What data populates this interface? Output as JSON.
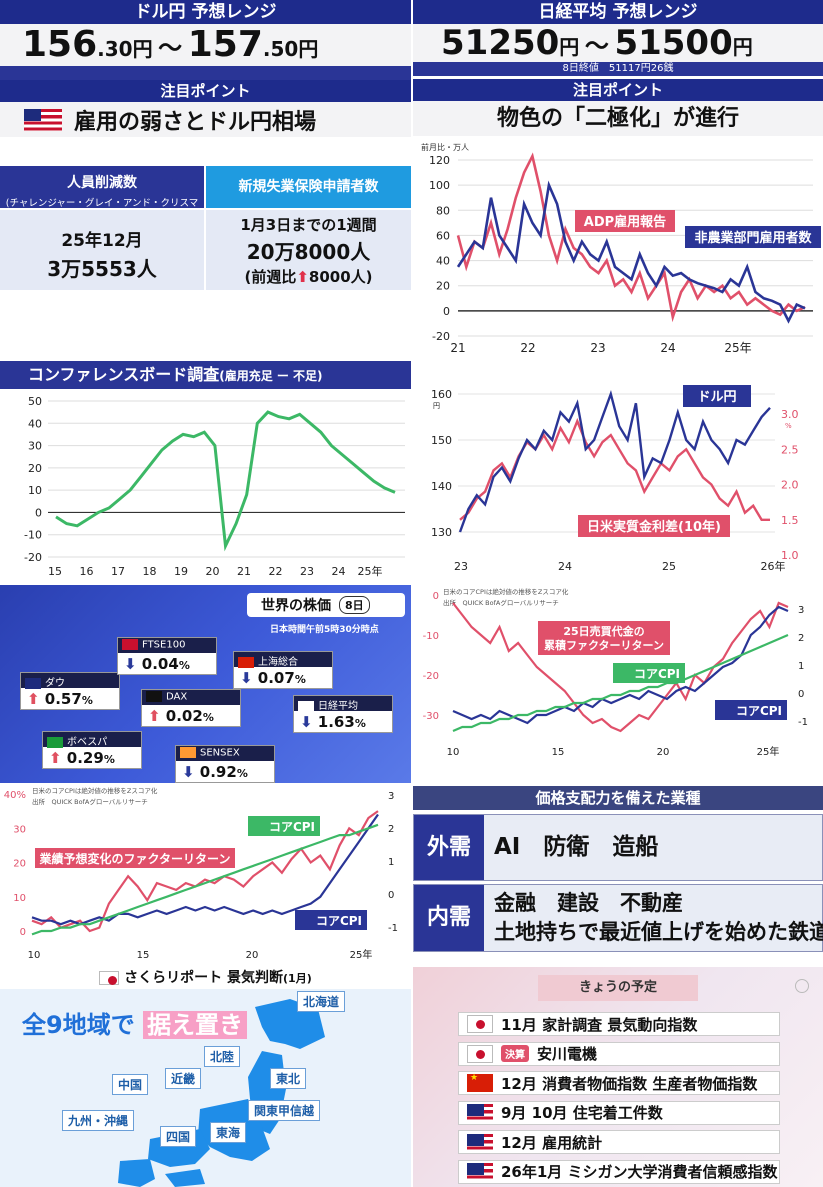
{
  "usdjpy": {
    "header": "ドル円 予想レンジ",
    "low_big": "156",
    "low_small": ".30円",
    "sep": "～",
    "high_big": "157",
    "high_small": ".50円"
  },
  "nikkei": {
    "header": "日経平均 予想レンジ",
    "low": "51250",
    "low_unit": "円",
    "sep": "～",
    "high": "51500",
    "high_unit": "円",
    "sub": "8日終値　51117円26銭"
  },
  "focus_left": {
    "header": "注目ポイント",
    "title": "雇用の弱さとドル円相場"
  },
  "focus_right": {
    "header": "注目ポイント",
    "title": "物色の「二極化」が進行"
  },
  "table": {
    "col1_head_1": "人員削減数",
    "col1_head_2": "(チャレンジャー・グレイ・アンド・クリスマス)",
    "col2_head": "新規失業保険申請者数",
    "col1_v1": "25年12月",
    "col1_v2": "3万5553人",
    "col2_v1": "1月3日までの1週間",
    "col2_v2": "20万8000人",
    "col2_v3a": "(前週比",
    "col2_v3b": "8000人)"
  },
  "chart_adp_title_unit": "前月比・万人",
  "chart_conf_title": "コンファレンスボード調査",
  "chart_conf_sub": "(雇用充足 ー 不足)",
  "chart_usd_unit": "円",
  "chart_usd_unit2": "%",
  "world": {
    "title": "世界の株価",
    "badge": "8日",
    "time": "日本時間午前5時30分時点",
    "items": [
      {
        "name": "ダウ",
        "value": "0.57",
        "dir": "up",
        "flag": "us"
      },
      {
        "name": "FTSE100",
        "value": "0.04",
        "dir": "down",
        "flag": "uk"
      },
      {
        "name": "DAX",
        "value": "0.02",
        "dir": "up",
        "flag": "de"
      },
      {
        "name": "上海総合",
        "value": "0.07",
        "dir": "down",
        "flag": "cn"
      },
      {
        "name": "日経平均",
        "value": "1.63",
        "dir": "down",
        "flag": "jp"
      },
      {
        "name": "ボベスパ",
        "value": "0.29",
        "dir": "up",
        "flag": "br"
      },
      {
        "name": "SENSEX",
        "value": "0.92",
        "dir": "down",
        "flag": "in"
      }
    ],
    "pct": "%"
  },
  "chart_factor_note": "日米のコアCPIは絶対値の推移をZスコア化",
  "chart_factor_src": "出所　QUICK BofAグローバルリサーチ",
  "pricing": {
    "header": "価格支配力を備えた業種",
    "ext_label": "外需",
    "ext_text": "AI　防衛　造船",
    "int_label": "内需",
    "int_text1": "金融　建設　不動産",
    "int_text2": "土地持ちで最近値上げを始めた鉄道"
  },
  "sakura": {
    "title": "さくらリポート 景気判断",
    "month": "(1月)",
    "headline_a": "全9地域で",
    "headline_b": "据え置き",
    "regions": [
      "北海道",
      "東北",
      "北陸",
      "関東甲信越",
      "東海",
      "近畿",
      "中国",
      "四国",
      "九州・沖縄"
    ]
  },
  "schedule": {
    "header": "きょうの予定",
    "badge": "決算",
    "rows": [
      {
        "flag": "jp",
        "text": "11月 家計調査 景気動向指数"
      },
      {
        "flag": "jp",
        "text": "安川電機",
        "badge": true
      },
      {
        "flag": "cn",
        "text": "12月 消費者物価指数 生産者物価指数"
      },
      {
        "flag": "us",
        "text": "9月 10月 住宅着工件数"
      },
      {
        "flag": "us",
        "text": "12月 雇用統計"
      },
      {
        "flag": "us",
        "text": "26年1月 ミシガン大学消費者信頼感指数"
      }
    ]
  },
  "chart_data": [
    {
      "type": "line",
      "title": "",
      "ylabel": "前月比・万人",
      "ylim": [
        -20,
        120
      ],
      "x_ticks": [
        "21",
        "22",
        "23",
        "24",
        "25年"
      ],
      "series": [
        {
          "name": "ADP雇用報告",
          "color": "#e0506a",
          "values": [
            60,
            35,
            55,
            50,
            70,
            45,
            65,
            90,
            110,
            123,
            95,
            60,
            40,
            65,
            50,
            45,
            35,
            30,
            40,
            20,
            25,
            15,
            30,
            10,
            20,
            30,
            -5,
            15,
            25,
            10,
            20,
            15,
            20,
            10,
            15,
            5,
            10,
            5,
            0,
            -3,
            5,
            0,
            3
          ]
        },
        {
          "name": "非農業部門雇用者数",
          "color": "#2a3596",
          "values": [
            35,
            45,
            55,
            50,
            90,
            60,
            50,
            40,
            85,
            70,
            60,
            100,
            85,
            55,
            40,
            55,
            45,
            40,
            55,
            35,
            30,
            25,
            45,
            30,
            20,
            35,
            28,
            30,
            25,
            22,
            20,
            18,
            15,
            25,
            20,
            35,
            15,
            10,
            8,
            5,
            -8,
            5,
            2
          ]
        }
      ]
    },
    {
      "type": "line",
      "title": "コンファレンスボード調査",
      "ylim": [
        -20,
        50
      ],
      "x_ticks": [
        "15",
        "16",
        "17",
        "18",
        "19",
        "20",
        "21",
        "22",
        "23",
        "24",
        "25年"
      ],
      "series": [
        {
          "name": "",
          "color": "#3cb866",
          "values": [
            -2,
            -5,
            -6,
            -3,
            0,
            2,
            6,
            10,
            16,
            22,
            28,
            32,
            35,
            34,
            36,
            30,
            -15,
            -5,
            8,
            40,
            45,
            43,
            42,
            44,
            40,
            36,
            30,
            26,
            22,
            18,
            14,
            11,
            9
          ]
        }
      ]
    },
    {
      "type": "line",
      "title": "",
      "x_ticks": [
        "23",
        "24",
        "25",
        "26年"
      ],
      "y_left": {
        "ticks": [
          "130",
          "140",
          "150",
          "160"
        ],
        "unit": "円"
      },
      "y_right": {
        "ticks": [
          "1.0",
          "1.5",
          "2.0",
          "2.5",
          "3.0"
        ],
        "unit": "%"
      },
      "series": [
        {
          "name": "ドル円",
          "color": "#2a3596",
          "values": [
            130,
            135,
            138,
            136,
            142,
            144,
            141,
            146,
            150,
            148,
            152,
            150,
            156,
            154,
            158,
            148,
            150,
            155,
            160,
            153,
            150,
            158,
            142,
            146,
            145,
            150,
            156,
            150,
            148,
            154,
            150,
            148,
            145,
            150,
            149,
            152,
            155,
            157
          ]
        },
        {
          "name": "日米実質金利差(10年)",
          "color": "#e0506a",
          "values": [
            1.5,
            1.6,
            1.8,
            1.9,
            2.2,
            2.3,
            2.1,
            2.4,
            2.6,
            2.5,
            2.7,
            2.5,
            2.8,
            2.6,
            2.9,
            2.6,
            2.4,
            2.6,
            2.7,
            2.5,
            2.3,
            2.2,
            1.9,
            2.1,
            2.3,
            2.2,
            2.4,
            2.5,
            2.3,
            2.1,
            2.0,
            1.8,
            1.7,
            1.9,
            1.6,
            1.7,
            1.5,
            1.5
          ]
        }
      ]
    },
    {
      "type": "line",
      "title": "",
      "x_ticks": [
        "10",
        "15",
        "20",
        "25年"
      ],
      "y_left": {
        "ticks": [
          "-30",
          "-20",
          "-10",
          "0"
        ]
      },
      "y_right": {
        "ticks": [
          "-1",
          "0",
          "1",
          "2",
          "3"
        ]
      },
      "series": [
        {
          "name": "25日売買代金の累積ファクターリターン",
          "color": "#e0506a",
          "values": [
            -2,
            -5,
            -8,
            -10,
            -12,
            -8,
            -14,
            -12,
            -15,
            -18,
            -20,
            -22,
            -24,
            -27,
            -30,
            -32,
            -31,
            -33,
            -34,
            -32,
            -30,
            -31,
            -28,
            -25,
            -22,
            -26,
            -20,
            -22,
            -18,
            -16,
            -12,
            -9,
            -6,
            -4,
            -8,
            -2,
            -3
          ]
        },
        {
          "name": "コアCPI",
          "color": "#2a3596",
          "values": [
            -29,
            -30,
            -31,
            -30,
            -31,
            -29,
            -30,
            -31,
            -32,
            -30,
            -30,
            -29,
            -28,
            -29,
            -27,
            -28,
            -26,
            -27,
            -26,
            -25,
            -26,
            -24,
            -25,
            -26,
            -24,
            -23,
            -24,
            -22,
            -20,
            -18,
            -17,
            -15,
            -10,
            -8,
            -5,
            -3,
            -4
          ]
        },
        {
          "name": "コアCPI",
          "color": "#3cb866",
          "values": [
            -34,
            -33,
            -33,
            -32,
            -32,
            -31,
            -31,
            -30,
            -30,
            -29,
            -29,
            -28,
            -28,
            -27,
            -27,
            -26,
            -26,
            -25,
            -25,
            -24,
            -24,
            -23,
            -23,
            -22,
            -22,
            -21,
            -20,
            -19,
            -18,
            -17,
            -16,
            -15,
            -14,
            -13,
            -12,
            -11,
            -10
          ]
        }
      ]
    },
    {
      "type": "line",
      "title": "",
      "x_ticks": [
        "10",
        "15",
        "20",
        "25年"
      ],
      "y_left": {
        "ticks": [
          "0",
          "10",
          "20",
          "30",
          "40%"
        ]
      },
      "y_right": {
        "ticks": [
          "-1",
          "0",
          "1",
          "2",
          "3"
        ]
      },
      "series": [
        {
          "name": "業績予想変化のファクターリターン",
          "color": "#e0506a",
          "values": [
            3,
            2,
            4,
            1,
            2,
            3,
            0,
            1,
            8,
            12,
            16,
            13,
            9,
            14,
            13,
            12,
            14,
            13,
            15,
            14,
            16,
            15,
            13,
            16,
            18,
            20,
            17,
            21,
            24,
            20,
            22,
            18,
            25,
            30,
            28,
            33,
            35
          ]
        },
        {
          "name": "コアCPI",
          "color": "#2a3596",
          "values": [
            4,
            3,
            3,
            2,
            3,
            2,
            3,
            4,
            3,
            5,
            5,
            4,
            5,
            6,
            5,
            6,
            7,
            6,
            7,
            6,
            7,
            6,
            5,
            6,
            5,
            6,
            5,
            6,
            7,
            8,
            10,
            14,
            18,
            22,
            26,
            30,
            34
          ]
        },
        {
          "name": "コアCPI",
          "color": "#3cb866",
          "values": [
            -1,
            0,
            0,
            1,
            1,
            2,
            2,
            3,
            4,
            5,
            6,
            7,
            8,
            9,
            10,
            11,
            12,
            13,
            14,
            15,
            16,
            17,
            18,
            19,
            20,
            21,
            22,
            23,
            24,
            25,
            26,
            27,
            28,
            28,
            29,
            30,
            31
          ]
        }
      ]
    }
  ]
}
